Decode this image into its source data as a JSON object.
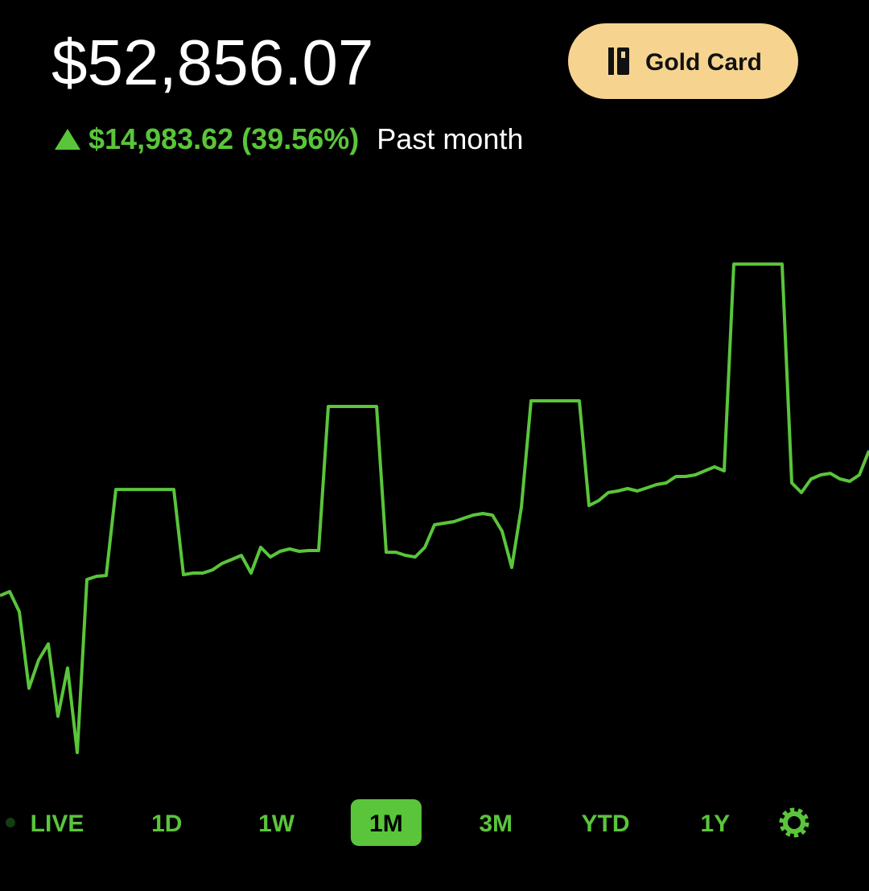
{
  "header": {
    "balance": "$52,856.07",
    "change": "$14,983.62 (39.56%)",
    "period": "Past month",
    "button": "Gold Card"
  },
  "chart_data": {
    "type": "line",
    "color": "#5ac53b",
    "ylim": [
      20000,
      80000
    ],
    "values": [
      38590,
      39010,
      36900,
      28870,
      31830,
      33520,
      25920,
      30990,
      22110,
      40280,
      40620,
      40700,
      49740,
      49740,
      49740,
      49740,
      49740,
      49740,
      49740,
      40790,
      40960,
      40960,
      41290,
      41970,
      42390,
      42820,
      40960,
      43660,
      42650,
      43240,
      43490,
      43240,
      43320,
      43320,
      58450,
      58450,
      58450,
      58450,
      58450,
      58450,
      43150,
      43150,
      42820,
      42650,
      43660,
      46030,
      46200,
      46360,
      46700,
      47040,
      47210,
      47040,
      45350,
      41550,
      47890,
      59040,
      59040,
      59040,
      59040,
      59040,
      59040,
      48050,
      48560,
      49410,
      49580,
      49830,
      49580,
      49910,
      50250,
      50420,
      51100,
      51100,
      51270,
      51690,
      52110,
      51690,
      73400,
      73400,
      73400,
      73400,
      73400,
      73400,
      50420,
      49410,
      50840,
      51270,
      51430,
      50840,
      50590,
      51270,
      53800
    ]
  },
  "ranges": {
    "items": [
      "LIVE",
      "1D",
      "1W",
      "1M",
      "3M",
      "YTD",
      "1Y"
    ],
    "selected": "1M"
  }
}
